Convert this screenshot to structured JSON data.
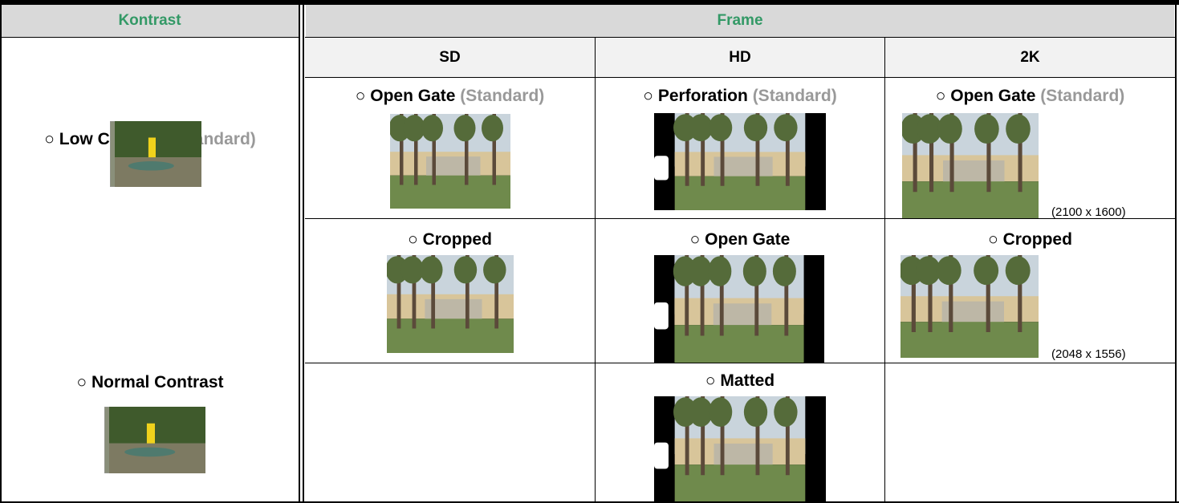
{
  "header": {
    "kontrast": "Kontrast",
    "frame": "Frame"
  },
  "columns": [
    "SD",
    "HD",
    "2K"
  ],
  "contrast_options": [
    {
      "label": "○ Low Contrast",
      "note": "(Standard)"
    },
    {
      "label": "○ Normal Contrast"
    }
  ],
  "frame_options": [
    [
      {
        "label": "○ Open Gate",
        "note": "(Standard)"
      },
      {
        "label": "○ Perforation",
        "note": "(Standard)"
      },
      {
        "label": "○ Open Gate",
        "note": "(Standard)",
        "size": "(2100 x 1600)"
      }
    ],
    [
      {
        "label": "○ Cropped"
      },
      {
        "label": "○ Open Gate"
      },
      {
        "label": "○ Cropped",
        "size": "(2048 x 1556)"
      }
    ],
    [
      null,
      {
        "label": "○ Matted"
      },
      null
    ]
  ]
}
